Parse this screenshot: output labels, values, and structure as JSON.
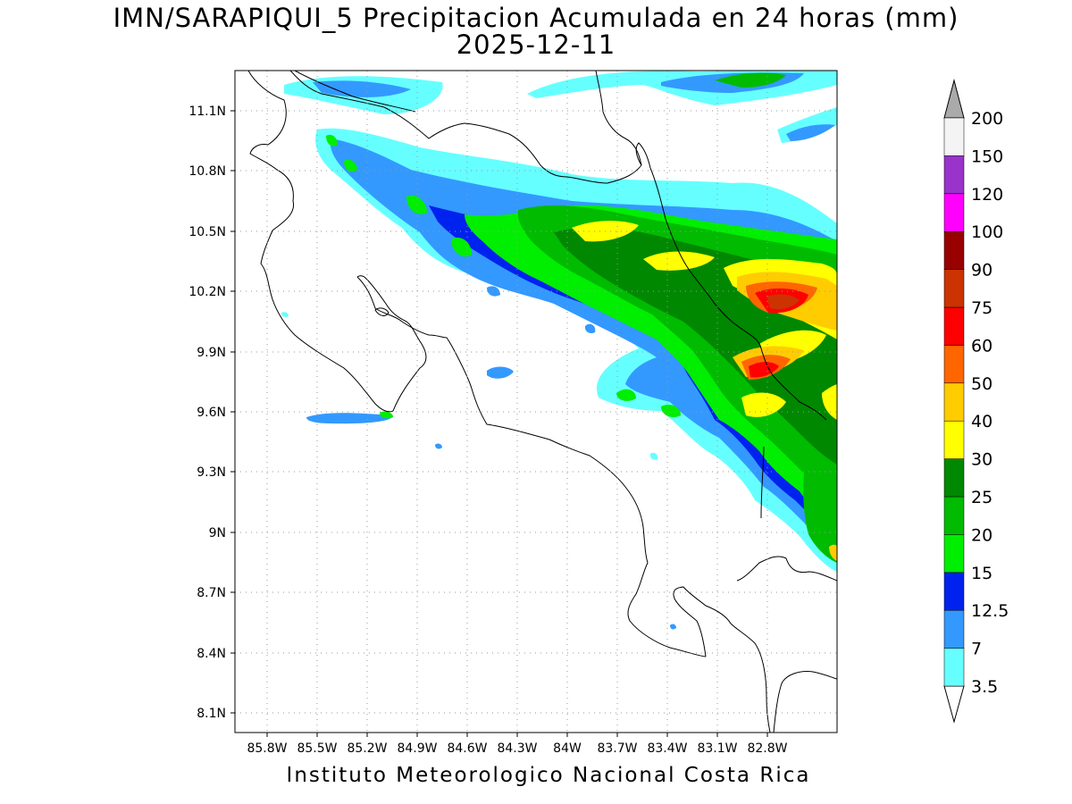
{
  "title_line1": "IMN/SARAPIQUI_5 Precipitacion Acumulada en 24 horas (mm)",
  "title_line2": "2025-12-11",
  "footer": "Instituto Meteorologico Nacional Costa Rica",
  "lat_ticks": [
    "11.1N",
    "10.8N",
    "10.5N",
    "10.2N",
    "9.9N",
    "9.6N",
    "9.3N",
    "9N",
    "8.7N",
    "8.4N",
    "8.1N"
  ],
  "lon_ticks": [
    "85.8W",
    "85.5W",
    "85.2W",
    "84.9W",
    "84.6W",
    "84.3W",
    "84W",
    "83.7W",
    "83.4W",
    "83.1W",
    "82.8W"
  ],
  "colorbar": {
    "levels": [
      "3.5",
      "7",
      "12.5",
      "15",
      "20",
      "25",
      "30",
      "40",
      "50",
      "60",
      "75",
      "90",
      "100",
      "120",
      "150",
      "200"
    ],
    "colors": [
      "#66ffff",
      "#3399ff",
      "#0022ee",
      "#00ee00",
      "#00bb00",
      "#008800",
      "#ffff00",
      "#ffcc00",
      "#ff6600",
      "#ff0000",
      "#cc3300",
      "#990000",
      "#ff00ff",
      "#9933cc",
      "#f4f4f4"
    ],
    "over_color": "#aaaaaa",
    "under_color": "#ffffff"
  }
}
